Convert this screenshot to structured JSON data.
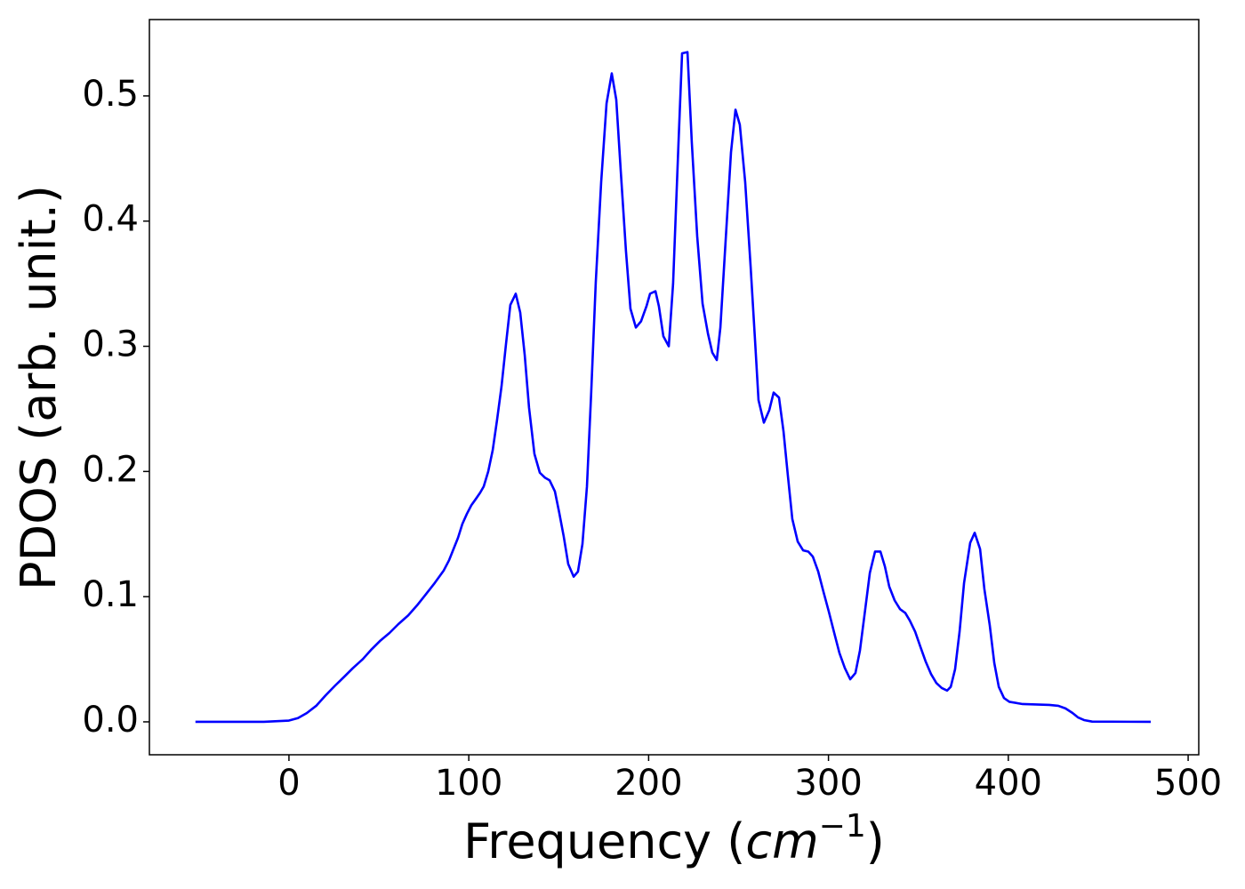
{
  "chart_data": {
    "type": "line",
    "ylabel": "PDOS (arb. unit.)",
    "xlabel": [
      "Frequency (",
      "cm",
      "−1",
      ")"
    ],
    "color": "#0000ff",
    "xlim": [
      -77.6,
      505.9
    ],
    "ylim": [
      -0.0263,
      0.561
    ],
    "xticks": [
      0,
      100,
      200,
      300,
      400,
      500
    ],
    "yticks": [
      {
        "value": 0,
        "label": "0.0"
      },
      0.1,
      0.2,
      0.3,
      0.4,
      0.5
    ],
    "x": [
      -52,
      -14,
      0,
      5,
      9.9,
      15.3,
      20.3,
      25.7,
      30.7,
      35.6,
      41,
      46,
      50.9,
      55.9,
      60.8,
      66.3,
      71.2,
      76.2,
      81.1,
      86.1,
      89,
      91.5,
      94,
      96.4,
      98.9,
      101.4,
      103.9,
      106.3,
      108.3,
      110.8,
      113.3,
      115.7,
      118.2,
      120.7,
      123.1,
      126.1,
      128.6,
      131.1,
      133.5,
      136.5,
      139.5,
      142.4,
      144.9,
      147.9,
      150.3,
      152.8,
      155.3,
      158.3,
      160.7,
      163.2,
      165.7,
      168.1,
      170.6,
      173.6,
      176.6,
      179.5,
      182,
      184.5,
      187.4,
      189.9,
      192.9,
      195.8,
      198.8,
      200.8,
      203.8,
      205.7,
      208.2,
      211.2,
      213.6,
      216.6,
      218.6,
      221.6,
      224,
      227,
      230,
      233,
      235.4,
      237.9,
      239.9,
      242.8,
      245.8,
      248.3,
      250.7,
      253.7,
      256.7,
      259.2,
      261.1,
      264.1,
      267.1,
      269.5,
      272.5,
      275,
      277.4,
      279.9,
      282.9,
      285.9,
      288.8,
      291.3,
      294.3,
      297.2,
      300.2,
      303.2,
      306.1,
      309.1,
      312.1,
      315,
      317.5,
      320,
      323,
      325.9,
      328.9,
      331.4,
      333.8,
      336.8,
      339.8,
      342.7,
      345.2,
      348.2,
      351.1,
      354.1,
      357.1,
      360,
      363,
      366,
      368,
      370.4,
      372.9,
      375.4,
      378.8,
      381.3,
      384.3,
      386.7,
      389.7,
      392.2,
      394.7,
      397.6,
      400.6,
      408,
      422.8,
      427.8,
      431.8,
      435.7,
      438.7,
      442.1,
      446.6,
      479.2
    ],
    "values": [
      0,
      0,
      0.001,
      0.003,
      0.007,
      0.013,
      0.021,
      0.029,
      0.036,
      0.043,
      0.05,
      0.058,
      0.065,
      0.071,
      0.078,
      0.085,
      0.093,
      0.102,
      0.111,
      0.121,
      0.129,
      0.138,
      0.147,
      0.158,
      0.166,
      0.173,
      0.178,
      0.183,
      0.188,
      0.2,
      0.217,
      0.241,
      0.268,
      0.302,
      0.333,
      0.342,
      0.327,
      0.293,
      0.251,
      0.214,
      0.199,
      0.195,
      0.193,
      0.184,
      0.167,
      0.148,
      0.126,
      0.116,
      0.12,
      0.142,
      0.188,
      0.264,
      0.351,
      0.431,
      0.494,
      0.518,
      0.497,
      0.44,
      0.376,
      0.33,
      0.315,
      0.32,
      0.332,
      0.342,
      0.344,
      0.332,
      0.308,
      0.3,
      0.35,
      0.462,
      0.534,
      0.535,
      0.463,
      0.388,
      0.334,
      0.31,
      0.295,
      0.289,
      0.315,
      0.384,
      0.455,
      0.489,
      0.477,
      0.431,
      0.364,
      0.304,
      0.257,
      0.239,
      0.249,
      0.263,
      0.259,
      0.232,
      0.197,
      0.162,
      0.144,
      0.137,
      0.136,
      0.132,
      0.12,
      0.104,
      0.088,
      0.071,
      0.055,
      0.043,
      0.034,
      0.039,
      0.057,
      0.085,
      0.119,
      0.136,
      0.136,
      0.124,
      0.108,
      0.097,
      0.09,
      0.087,
      0.081,
      0.072,
      0.06,
      0.048,
      0.038,
      0.031,
      0.027,
      0.025,
      0.028,
      0.042,
      0.072,
      0.111,
      0.143,
      0.151,
      0.138,
      0.106,
      0.077,
      0.047,
      0.028,
      0.019,
      0.016,
      0.0142,
      0.0135,
      0.0128,
      0.0107,
      0.0071,
      0.0036,
      0.0014,
      0.0002,
      0
    ]
  }
}
